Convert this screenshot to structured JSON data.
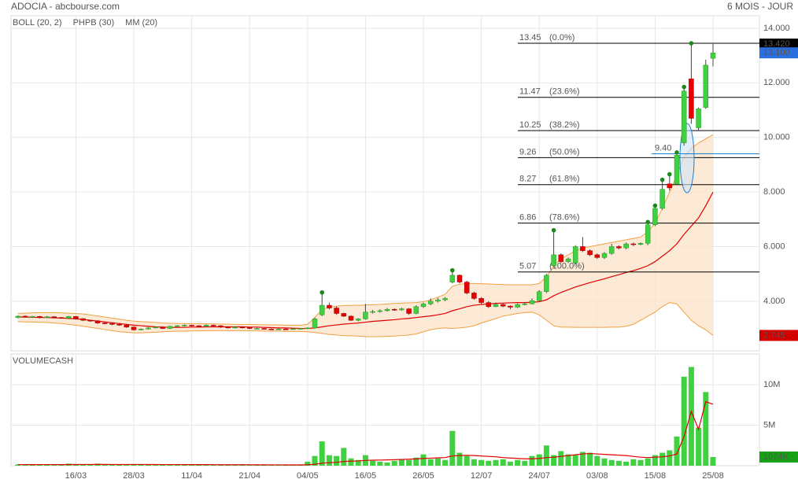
{
  "header": {
    "title": "ADOCIA - abcbourse.com",
    "period": "6 MOIS - JOUR"
  },
  "chart_data": [
    {
      "type": "candlestick",
      "categories": [
        null,
        null,
        null,
        null,
        null,
        null,
        null,
        null,
        "16/03",
        null,
        null,
        null,
        null,
        null,
        null,
        null,
        "28/03",
        null,
        null,
        null,
        null,
        null,
        null,
        null,
        "11/04",
        null,
        null,
        null,
        null,
        null,
        null,
        null,
        "21/04",
        null,
        null,
        null,
        null,
        null,
        null,
        null,
        "04/05",
        null,
        null,
        null,
        null,
        null,
        null,
        null,
        "16/05",
        null,
        null,
        null,
        null,
        null,
        null,
        null,
        "26/05",
        null,
        null,
        null,
        null,
        null,
        null,
        null,
        "12/07",
        null,
        null,
        null,
        null,
        null,
        null,
        null,
        "24/07",
        null,
        null,
        null,
        null,
        null,
        null,
        null,
        "03/08",
        null,
        null,
        null,
        null,
        null,
        null,
        null,
        "15/08",
        null,
        null,
        null,
        null,
        null,
        null,
        null,
        "25/08"
      ],
      "open": [
        3.4,
        3.45,
        3.42,
        3.44,
        3.4,
        3.43,
        3.4,
        3.38,
        3.44,
        3.36,
        3.3,
        3.28,
        3.2,
        3.18,
        3.15,
        3.12,
        3.05,
        2.95,
        2.98,
        3.02,
        3.05,
        3.0,
        3.08,
        3.1,
        3.12,
        3.1,
        3.08,
        3.12,
        3.1,
        3.05,
        3.02,
        3.05,
        3.03,
        3.0,
        3.0,
        2.98,
        2.97,
        2.98,
        2.97,
        2.99,
        3.0,
        3.02,
        3.5,
        3.85,
        3.75,
        3.55,
        3.45,
        3.3,
        3.35,
        3.6,
        3.62,
        3.65,
        3.7,
        3.68,
        3.72,
        3.55,
        3.8,
        3.9,
        4.0,
        4.05,
        4.7,
        4.95,
        4.7,
        4.3,
        4.1,
        3.95,
        3.8,
        3.88,
        3.82,
        3.78,
        3.88,
        3.9,
        4.02,
        4.35,
        5.3,
        5.7,
        5.45,
        5.4,
        6.0,
        5.85,
        5.7,
        5.6,
        5.75,
        6.0,
        5.95,
        6.1,
        6.08,
        6.12,
        6.8,
        7.4,
        8.3,
        8.3,
        9.8,
        12.15,
        10.35,
        11.1,
        12.9
      ],
      "high": [
        3.48,
        3.48,
        3.46,
        3.46,
        3.46,
        3.45,
        3.42,
        3.46,
        3.46,
        3.38,
        3.32,
        3.3,
        3.22,
        3.2,
        3.18,
        3.15,
        3.08,
        3.0,
        3.05,
        3.08,
        3.08,
        3.1,
        3.12,
        3.15,
        3.14,
        3.12,
        3.15,
        3.14,
        3.12,
        3.08,
        3.08,
        3.06,
        3.05,
        3.03,
        3.02,
        3.0,
        3.0,
        3.0,
        3.0,
        3.02,
        3.04,
        3.4,
        4.32,
        3.95,
        3.8,
        3.58,
        3.48,
        3.38,
        3.9,
        3.68,
        3.7,
        3.75,
        3.74,
        3.76,
        3.75,
        3.85,
        3.95,
        4.1,
        4.12,
        4.15,
        5.13,
        4.98,
        4.75,
        4.35,
        4.15,
        4.0,
        3.95,
        3.92,
        3.85,
        3.92,
        3.95,
        4.1,
        4.4,
        5.0,
        6.6,
        5.75,
        5.6,
        6.05,
        6.35,
        5.9,
        5.75,
        5.8,
        6.1,
        6.05,
        6.15,
        6.15,
        6.15,
        6.9,
        7.5,
        8.45,
        8.65,
        9.45,
        11.85,
        13.45,
        11.1,
        12.85,
        13.42
      ],
      "low": [
        3.37,
        3.39,
        3.39,
        3.37,
        3.38,
        3.37,
        3.36,
        3.35,
        3.33,
        3.27,
        3.25,
        3.17,
        3.15,
        3.12,
        3.1,
        3.02,
        2.92,
        2.93,
        2.96,
        3.0,
        2.98,
        2.98,
        3.05,
        3.07,
        3.07,
        3.05,
        3.06,
        3.07,
        3.02,
        3.0,
        3.0,
        3.0,
        2.98,
        2.97,
        2.96,
        2.95,
        2.95,
        2.95,
        2.95,
        2.97,
        2.98,
        3.0,
        3.45,
        3.7,
        3.5,
        3.42,
        3.28,
        3.26,
        3.32,
        3.55,
        3.58,
        3.62,
        3.65,
        3.65,
        3.5,
        3.52,
        3.75,
        3.85,
        3.95,
        4.0,
        4.65,
        4.65,
        4.25,
        4.05,
        3.9,
        3.75,
        3.78,
        3.78,
        3.7,
        3.75,
        3.85,
        3.88,
        3.98,
        4.3,
        5.25,
        5.4,
        5.4,
        5.35,
        5.8,
        5.65,
        5.55,
        5.55,
        5.7,
        5.9,
        5.9,
        6.02,
        6.05,
        6.05,
        6.75,
        7.35,
        8.05,
        8.25,
        9.7,
        10.5,
        10.25,
        11.05,
        12.6
      ],
      "close": [
        3.45,
        3.42,
        3.44,
        3.4,
        3.43,
        3.4,
        3.38,
        3.44,
        3.36,
        3.3,
        3.28,
        3.2,
        3.18,
        3.15,
        3.12,
        3.05,
        2.95,
        2.98,
        3.02,
        3.05,
        3.0,
        3.08,
        3.1,
        3.12,
        3.1,
        3.08,
        3.12,
        3.1,
        3.05,
        3.02,
        3.05,
        3.03,
        3.0,
        3.0,
        2.98,
        2.97,
        2.98,
        2.97,
        2.99,
        3.0,
        3.02,
        3.35,
        3.85,
        3.75,
        3.55,
        3.45,
        3.3,
        3.35,
        3.6,
        3.62,
        3.65,
        3.7,
        3.68,
        3.72,
        3.55,
        3.8,
        3.9,
        4.0,
        4.05,
        4.1,
        4.95,
        4.7,
        4.3,
        4.1,
        3.95,
        3.8,
        3.88,
        3.82,
        3.78,
        3.88,
        3.9,
        4.02,
        4.35,
        4.95,
        5.7,
        5.45,
        5.55,
        6.0,
        5.85,
        5.7,
        5.6,
        5.75,
        6.0,
        5.95,
        6.1,
        6.08,
        6.12,
        6.8,
        7.4,
        8.1,
        8.15,
        9.35,
        11.7,
        10.7,
        11.05,
        12.65,
        13.1
      ],
      "up_color": "#3fd13f",
      "down_color": "#e60000",
      "ylim": [
        2.18,
        14.46
      ],
      "yticks": [
        {
          "value": 4,
          "label": "4.000"
        },
        {
          "value": 6,
          "label": "6.000"
        },
        {
          "value": 8,
          "label": "8.000"
        },
        {
          "value": 10,
          "label": "10.000"
        },
        {
          "value": 12,
          "label": "12.000"
        },
        {
          "value": 14,
          "label": "14.000"
        }
      ],
      "grid": true,
      "overlays": [
        {
          "name": "BOLL (20, 2)",
          "color": "#f0a040",
          "upper": [
            3.55,
            3.56,
            3.57,
            3.58,
            3.58,
            3.58,
            3.57,
            3.56,
            3.55,
            3.53,
            3.5,
            3.46,
            3.42,
            3.38,
            3.34,
            3.3,
            3.27,
            3.25,
            3.24,
            3.22,
            3.2,
            3.19,
            3.18,
            3.18,
            3.17,
            3.17,
            3.17,
            3.17,
            3.16,
            3.16,
            3.15,
            3.15,
            3.15,
            3.14,
            3.14,
            3.13,
            3.13,
            3.12,
            3.12,
            3.12,
            3.15,
            3.4,
            3.7,
            3.78,
            3.82,
            3.84,
            3.85,
            3.85,
            3.86,
            3.87,
            3.88,
            3.9,
            3.92,
            3.93,
            3.94,
            3.95,
            3.98,
            4.05,
            4.15,
            4.25,
            4.55,
            4.62,
            4.65,
            4.65,
            4.64,
            4.63,
            4.62,
            4.61,
            4.6,
            4.6,
            4.6,
            4.6,
            4.65,
            4.9,
            5.3,
            5.55,
            5.7,
            5.85,
            5.95,
            6.0,
            6.05,
            6.1,
            6.15,
            6.2,
            6.25,
            6.3,
            6.35,
            6.55,
            6.85,
            7.4,
            8.0,
            8.6,
            9.3,
            9.6,
            9.8,
            9.95,
            10.1
          ],
          "lower": [
            3.25,
            3.24,
            3.24,
            3.23,
            3.22,
            3.2,
            3.18,
            3.15,
            3.12,
            3.08,
            3.04,
            3.0,
            2.96,
            2.92,
            2.88,
            2.86,
            2.84,
            2.84,
            2.85,
            2.86,
            2.88,
            2.89,
            2.9,
            2.9,
            2.91,
            2.91,
            2.92,
            2.92,
            2.92,
            2.92,
            2.92,
            2.92,
            2.91,
            2.91,
            2.9,
            2.9,
            2.9,
            2.89,
            2.89,
            2.89,
            2.88,
            2.85,
            2.82,
            2.78,
            2.76,
            2.74,
            2.73,
            2.72,
            2.7,
            2.7,
            2.7,
            2.71,
            2.72,
            2.74,
            2.76,
            2.8,
            2.88,
            2.95,
            3.0,
            3.02,
            3.0,
            3.02,
            3.05,
            3.1,
            3.2,
            3.28,
            3.36,
            3.45,
            3.5,
            3.55,
            3.58,
            3.6,
            3.5,
            3.3,
            3.1,
            3.05,
            3.05,
            3.04,
            3.04,
            3.04,
            3.04,
            3.04,
            3.05,
            3.05,
            3.08,
            3.15,
            3.3,
            3.45,
            3.6,
            3.8,
            3.95,
            3.9,
            3.6,
            3.3,
            3.1,
            2.95,
            2.745
          ]
        },
        {
          "name": "PHPB (30)",
          "color": "#1a8a1a",
          "points": [
            42,
            60,
            74,
            87,
            88,
            89,
            90,
            91,
            92,
            93
          ]
        },
        {
          "name": "MM (20)",
          "color": "#e00000",
          "values": [
            3.42,
            3.42,
            3.41,
            3.4,
            3.4,
            3.39,
            3.38,
            3.37,
            3.35,
            3.33,
            3.3,
            3.27,
            3.24,
            3.21,
            3.18,
            3.15,
            3.12,
            3.1,
            3.08,
            3.06,
            3.05,
            3.04,
            3.04,
            3.04,
            3.05,
            3.05,
            3.06,
            3.06,
            3.06,
            3.06,
            3.06,
            3.06,
            3.05,
            3.05,
            3.04,
            3.03,
            3.02,
            3.02,
            3.01,
            3.0,
            3.0,
            3.02,
            3.06,
            3.1,
            3.13,
            3.16,
            3.18,
            3.2,
            3.23,
            3.26,
            3.28,
            3.3,
            3.32,
            3.35,
            3.37,
            3.4,
            3.43,
            3.46,
            3.5,
            3.55,
            3.65,
            3.72,
            3.8,
            3.85,
            3.88,
            3.9,
            3.92,
            3.93,
            3.94,
            3.95,
            3.95,
            3.96,
            3.98,
            4.05,
            4.2,
            4.32,
            4.42,
            4.52,
            4.6,
            4.68,
            4.75,
            4.82,
            4.9,
            4.97,
            5.05,
            5.12,
            5.2,
            5.3,
            5.45,
            5.65,
            5.85,
            6.1,
            6.45,
            6.75,
            7.05,
            7.5,
            8.0
          ]
        }
      ],
      "fibonacci": [
        {
          "level": 13.45,
          "label": "(0.0%)"
        },
        {
          "level": 11.47,
          "label": "(23.6%)"
        },
        {
          "level": 10.25,
          "label": "(38.2%)"
        },
        {
          "level": 9.26,
          "label": "(50.0%)"
        },
        {
          "level": 8.27,
          "label": "(61.8%)"
        },
        {
          "level": 6.86,
          "label": "(78.6%)"
        },
        {
          "level": 5.07,
          "label": "(100.0%)"
        }
      ],
      "annotation": {
        "value": 9.4,
        "label": "9.40",
        "color": "#1a7fd0"
      },
      "price_tags": [
        {
          "value": 13.42,
          "label": "13.420",
          "color": "#000000"
        },
        {
          "value": 13.1,
          "label": "13.100",
          "color": "#2a6fe0"
        },
        {
          "value": 2.745,
          "label": "2.745",
          "color": "#d40000"
        }
      ]
    },
    {
      "type": "bar",
      "name": "VOLUMECASH",
      "color": "#3fd13f",
      "ma_color": "#e00000",
      "values": [
        150000,
        120000,
        100000,
        180000,
        120000,
        90000,
        100000,
        250000,
        120000,
        200000,
        180000,
        250000,
        150000,
        120000,
        100000,
        180000,
        200000,
        120000,
        100000,
        90000,
        100000,
        120000,
        150000,
        180000,
        100000,
        120000,
        100000,
        90000,
        100000,
        120000,
        80000,
        100000,
        90000,
        80000,
        100000,
        90000,
        80000,
        100000,
        90000,
        120000,
        500000,
        1200000,
        3000000,
        1300000,
        1200000,
        2200000,
        900000,
        700000,
        1300000,
        600000,
        500000,
        400000,
        600000,
        800000,
        700000,
        1000000,
        1400000,
        800000,
        900000,
        700000,
        4300000,
        1600000,
        1200000,
        800000,
        700000,
        600000,
        700000,
        800000,
        500000,
        700000,
        600000,
        1200000,
        1400000,
        2500000,
        1300000,
        1800000,
        1400000,
        1300000,
        1700000,
        1600000,
        1200000,
        900000,
        700000,
        600000,
        500000,
        800000,
        700000,
        900000,
        1300000,
        1600000,
        1900000,
        3600000,
        11000000,
        12200000,
        4700000,
        9100000,
        1074000
      ],
      "ma": [
        140000,
        140000,
        135000,
        140000,
        140000,
        138000,
        135000,
        145000,
        145000,
        150000,
        150000,
        155000,
        155000,
        150000,
        148000,
        150000,
        152000,
        150000,
        148000,
        145000,
        140000,
        138000,
        138000,
        140000,
        135000,
        133000,
        130000,
        128000,
        125000,
        125000,
        120000,
        118000,
        115000,
        110000,
        108000,
        105000,
        103000,
        100000,
        100000,
        100000,
        120000,
        170000,
        310000,
        370000,
        420000,
        520000,
        560000,
        590000,
        650000,
        680000,
        700000,
        720000,
        740000,
        770000,
        800000,
        840000,
        900000,
        930000,
        970000,
        1000000,
        1200000,
        1250000,
        1280000,
        1250000,
        1200000,
        1150000,
        1100000,
        1000000,
        950000,
        900000,
        850000,
        850000,
        900000,
        1000000,
        1050000,
        1150000,
        1250000,
        1350000,
        1450000,
        1500000,
        1450000,
        1400000,
        1350000,
        1300000,
        1250000,
        1150000,
        1050000,
        1000000,
        1050000,
        1100000,
        1200000,
        1450000,
        3600000,
        6700000,
        4500000,
        7900000,
        7600000
      ],
      "ylim": [
        0,
        13800000
      ],
      "yticks": [
        {
          "value": 5000000,
          "label": "5M"
        },
        {
          "value": 10000000,
          "label": "10M"
        }
      ],
      "last_tag": {
        "value": 1074000,
        "label": "1074K",
        "color": "#16a016"
      }
    }
  ]
}
